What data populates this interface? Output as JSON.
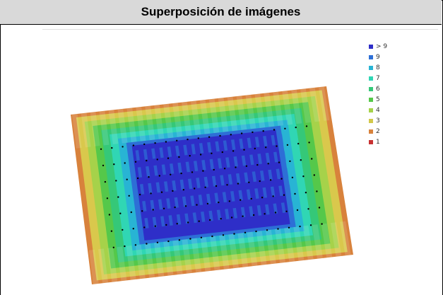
{
  "header": {
    "title": "Superposición de imágenes"
  },
  "legend": {
    "items": [
      {
        "label": "> 9",
        "color": "#2e2ec8"
      },
      {
        "label": "9",
        "color": "#2d6fd6"
      },
      {
        "label": "8",
        "color": "#28b4d4"
      },
      {
        "label": "7",
        "color": "#30d6b4"
      },
      {
        "label": "6",
        "color": "#35c878"
      },
      {
        "label": "5",
        "color": "#55c84a"
      },
      {
        "label": "4",
        "color": "#a6d24a"
      },
      {
        "label": "3",
        "color": "#d2c84a"
      },
      {
        "label": "2",
        "color": "#d8823c"
      },
      {
        "label": "1",
        "color": "#c83232"
      }
    ]
  },
  "map": {
    "colors": {
      "c1": "#c83232",
      "c2": "#d8823c",
      "c3": "#d9c84c",
      "c4": "#a6d24a",
      "c5": "#55c84a",
      "c6": "#35c878",
      "c7": "#30d6b4",
      "c8": "#28b4d4",
      "c9": "#2d6fd6",
      "c10": "#2e2ec8"
    }
  }
}
